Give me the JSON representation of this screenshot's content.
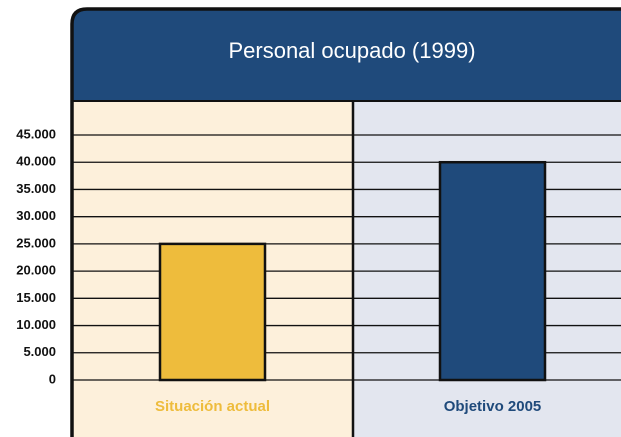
{
  "chart_data": {
    "type": "bar",
    "title": "Personal ocupado (1999)",
    "categories": [
      "Situación actual",
      "Objetivo 2005"
    ],
    "values": [
      25000,
      40000
    ],
    "colors": [
      "#eebc3c",
      "#1f4a7b"
    ],
    "ylim": [
      0,
      45000
    ],
    "yticks": [
      0,
      {
        "value": 5000,
        "label": "5.000"
      },
      {
        "value": 10000,
        "label": "10.000"
      },
      {
        "value": 15000,
        "label": "15.000"
      },
      {
        "value": 20000,
        "label": "20.000"
      },
      {
        "value": 25000,
        "label": "25.000"
      },
      {
        "value": 30000,
        "label": "30.000"
      },
      {
        "value": 35000,
        "label": "35.000"
      },
      {
        "value": 40000,
        "label": "40.000"
      },
      {
        "value": 45000,
        "label": "45.000"
      }
    ],
    "grid": true
  }
}
